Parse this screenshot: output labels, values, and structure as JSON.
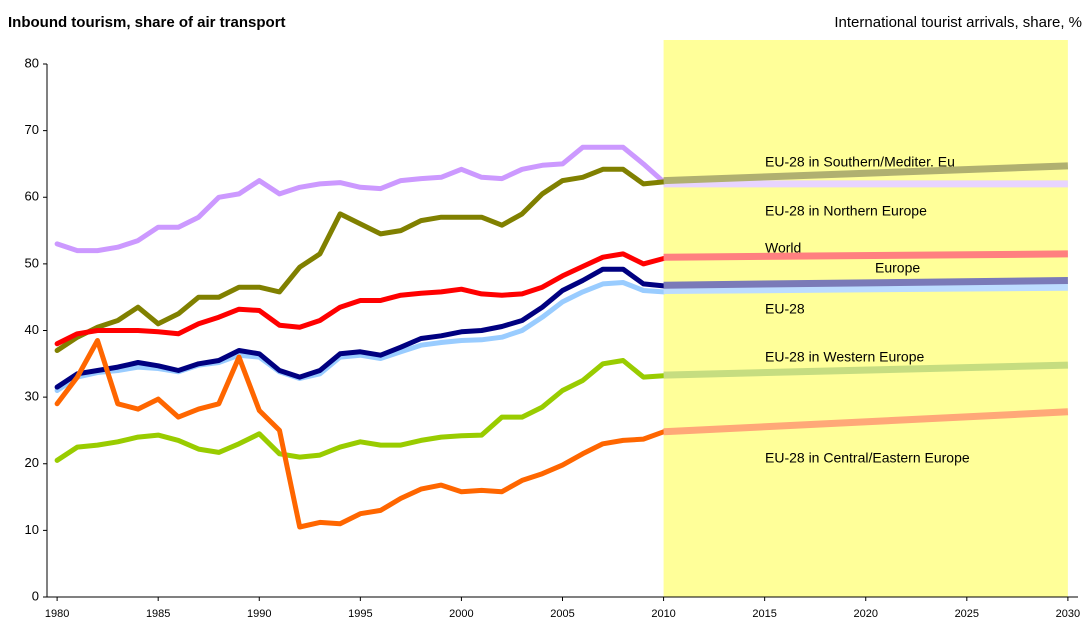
{
  "chart_data": {
    "type": "line",
    "title": "Inbound tourism, share of air transport",
    "subtitle": "International tourist arrivals, share, %",
    "x": [
      1980,
      1981,
      1982,
      1983,
      1984,
      1985,
      1986,
      1987,
      1988,
      1989,
      1990,
      1991,
      1992,
      1993,
      1994,
      1995,
      1996,
      1997,
      1998,
      1999,
      2000,
      2001,
      2002,
      2003,
      2004,
      2005,
      2006,
      2007,
      2008,
      2009,
      2010
    ],
    "projection_x": [
      2010,
      2030
    ],
    "shaded_xrange": [
      2010,
      2030
    ],
    "shade_color": "#ffff99",
    "xlim": [
      1979.5,
      2030.5
    ],
    "xticks": [
      1980,
      1985,
      1990,
      1995,
      2000,
      2005,
      2010,
      2015,
      2020,
      2025,
      2030
    ],
    "ylim": [
      0,
      80
    ],
    "yticks": [
      0,
      10,
      20,
      30,
      40,
      50,
      60,
      70,
      80
    ],
    "series": [
      {
        "name": "EU-28 in Northern Europe",
        "color": "#cc99ff",
        "projection_color": "#e8d4ff",
        "label_color": "#a0609a",
        "values": [
          53,
          52,
          52,
          52.5,
          53.5,
          55.5,
          55.5,
          57,
          60,
          60.5,
          62.5,
          60.5,
          61.5,
          62,
          62.2,
          61.5,
          61.3,
          62.5,
          62.8,
          63,
          64.2,
          63,
          62.8,
          64.2,
          64.8,
          65,
          67.5,
          67.5,
          67.5,
          65,
          62.3
        ],
        "projection_values": [
          62,
          62
        ]
      },
      {
        "name": "EU-28 in Southern/Mediter. Eu",
        "color": "#808000",
        "projection_color": "#b0b070",
        "label_color": "#8c8c10",
        "values": [
          37,
          39,
          40.5,
          41.5,
          43.5,
          41,
          42.5,
          45,
          45,
          46.5,
          46.5,
          45.8,
          49.5,
          51.5,
          57.5,
          56,
          54.5,
          55,
          56.5,
          57,
          57,
          57,
          55.8,
          57.5,
          60.5,
          62.5,
          63,
          64.2,
          64.2,
          62,
          62.3
        ],
        "projection_values": [
          62.5,
          64.7
        ]
      },
      {
        "name": "World",
        "color": "#ff0000",
        "projection_color": "#ff8080",
        "label_color": "#ff0000",
        "values": [
          38,
          39.5,
          40,
          40,
          40,
          39.8,
          39.5,
          41,
          42,
          43.2,
          43,
          40.8,
          40.5,
          41.5,
          43.5,
          44.5,
          44.5,
          45.3,
          45.6,
          45.8,
          46.2,
          45.5,
          45.3,
          45.5,
          46.5,
          48.2,
          49.6,
          51,
          51.5,
          50,
          50.8
        ],
        "projection_values": [
          51,
          51.5
        ]
      },
      {
        "name": "Europe",
        "color": "#99ccff",
        "projection_color": "#bcdcff",
        "label_color": "#3366ff",
        "values": [
          31,
          33,
          33.7,
          34,
          34.5,
          34.3,
          33.8,
          34.8,
          35.2,
          36.3,
          36,
          33.8,
          32.8,
          33.5,
          36,
          36.3,
          35.8,
          36.8,
          37.8,
          38.2,
          38.5,
          38.6,
          39,
          40,
          42,
          44.3,
          45.8,
          47,
          47.2,
          46,
          45.8
        ],
        "projection_values": [
          46,
          46.5
        ]
      },
      {
        "name": "EU-28",
        "color": "#000080",
        "projection_color": "#7a7ab8",
        "label_color": "#000080",
        "values": [
          31.5,
          33.5,
          34,
          34.5,
          35.2,
          34.7,
          34,
          35,
          35.5,
          37,
          36.5,
          34,
          33,
          34,
          36.5,
          36.8,
          36.3,
          37.5,
          38.8,
          39.2,
          39.8,
          40,
          40.6,
          41.5,
          43.5,
          46,
          47.5,
          49.2,
          49.2,
          47,
          46.7
        ],
        "projection_values": [
          46.8,
          47.5
        ]
      },
      {
        "name": "EU-28 in Western Europe",
        "color": "#99cc00",
        "projection_color": "#c6dd80",
        "label_color": "#99cc00",
        "values": [
          20.5,
          22.5,
          22.8,
          23.3,
          24,
          24.3,
          23.5,
          22.2,
          21.7,
          23,
          24.5,
          21.5,
          21,
          21.3,
          22.5,
          23.3,
          22.8,
          22.8,
          23.5,
          24,
          24.2,
          24.3,
          27,
          27,
          28.5,
          31,
          32.5,
          35,
          35.5,
          33,
          33.2
        ],
        "projection_values": [
          33.3,
          34.8
        ]
      },
      {
        "name": "EU-28 in Central/Eastern Europe",
        "color": "#ff6600",
        "projection_color": "#ffa878",
        "label_color": "#ff6600",
        "values": [
          29,
          33,
          38.5,
          29,
          28.2,
          29.7,
          27,
          28.2,
          29,
          36,
          28,
          25,
          10.5,
          11.2,
          11,
          12.5,
          13,
          14.8,
          16.2,
          16.8,
          15.8,
          16,
          15.8,
          17.5,
          18.5,
          19.8,
          21.5,
          23,
          23.5,
          23.7,
          24.8
        ],
        "projection_values": [
          24.8,
          27.8
        ]
      }
    ]
  }
}
